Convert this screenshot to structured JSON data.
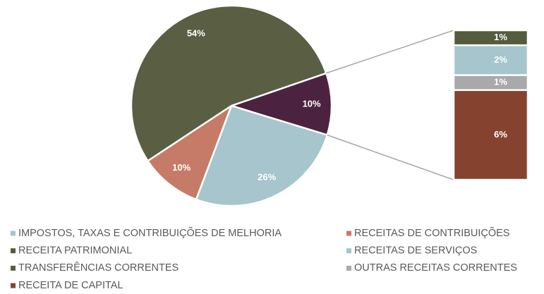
{
  "chart_data": {
    "type": "pie-of-bar",
    "categories": [
      "IMPOSTOS, TAXAS E CONTRIBUIÇÕES DE MELHORIA",
      "RECEITAS DE CONTRIBUIÇÕES",
      "RECEITA PATRIMONIAL",
      "RECEITAS DE SERVIÇOS",
      "TRANSFERÊNCIAS CORRENTES",
      "OUTRAS RECEITAS CORRENTES",
      "RECEITA DE CAPITAL"
    ],
    "values": [
      26,
      10,
      1,
      2,
      54,
      1,
      6
    ],
    "value_labels": [
      "26%",
      "10%",
      "1%",
      "2%",
      "54%",
      "1%",
      "6%"
    ],
    "colors": [
      "#a6c5cc",
      "#c57b67",
      "#555c3e",
      "#a6c5cc",
      "#5a5e42",
      "#a9a9a9",
      "#85432f"
    ],
    "in_bar": [
      false,
      false,
      true,
      true,
      false,
      true,
      true
    ],
    "other_value": 10,
    "other_label": "10%",
    "other_color": "#4b2340",
    "legend": "bottom"
  }
}
